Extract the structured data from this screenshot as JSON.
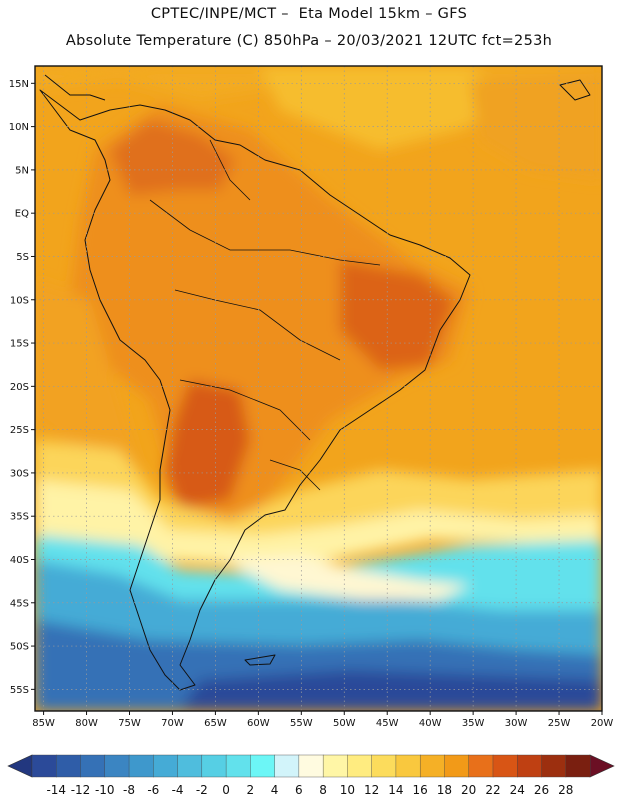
{
  "header": {
    "line1": "CPTEC/INPE/MCT –  Eta Model 15km – GFS",
    "line2": "Absolute Temperature (C) 850hPa – 20/03/2021 12UTC fct=253h"
  },
  "map": {
    "field": "Absolute Temperature (C) 850hPa",
    "lat_labels": [
      "15N",
      "10N",
      "5N",
      "EQ",
      "5S",
      "10S",
      "15S",
      "20S",
      "25S",
      "30S",
      "35S",
      "40S",
      "45S",
      "50S",
      "55S"
    ],
    "lat_values": [
      15,
      10,
      5,
      0,
      -5,
      -10,
      -15,
      -20,
      -25,
      -30,
      -35,
      -40,
      -45,
      -50,
      -55
    ],
    "lon_labels": [
      "85W",
      "80W",
      "75W",
      "70W",
      "65W",
      "60W",
      "55W",
      "50W",
      "45W",
      "40W",
      "35W",
      "30W",
      "25W",
      "20W"
    ],
    "lon_values": [
      -85,
      -80,
      -75,
      -70,
      -65,
      -60,
      -55,
      -50,
      -45,
      -40,
      -35,
      -30,
      -25,
      -20
    ],
    "lat_range": [
      -57.5,
      17
    ],
    "lon_range": [
      -86,
      -20
    ]
  },
  "colorbar": {
    "labels": [
      "-14",
      "-12",
      "-10",
      "-8",
      "-6",
      "-4",
      "-2",
      "0",
      "2",
      "4",
      "6",
      "8",
      "10",
      "12",
      "14",
      "16",
      "18",
      "20",
      "22",
      "24",
      "26",
      "28"
    ],
    "colors": [
      "#2b4a99",
      "#2f5da8",
      "#3571b6",
      "#3b85c2",
      "#3e98cc",
      "#45abd6",
      "#4fbddd",
      "#56cfe4",
      "#62e1ec",
      "#6cf6f6",
      "#d2f4fa",
      "#fffbe0",
      "#fff6a6",
      "#ffec80",
      "#fcdc5c",
      "#f9c83e",
      "#f5b026",
      "#f29a18",
      "#e8701a",
      "#d85515",
      "#bf4012",
      "#9c2f0f",
      "#7a1f10"
    ],
    "under_color": "#22377f",
    "over_color": "#6b0f24"
  }
}
